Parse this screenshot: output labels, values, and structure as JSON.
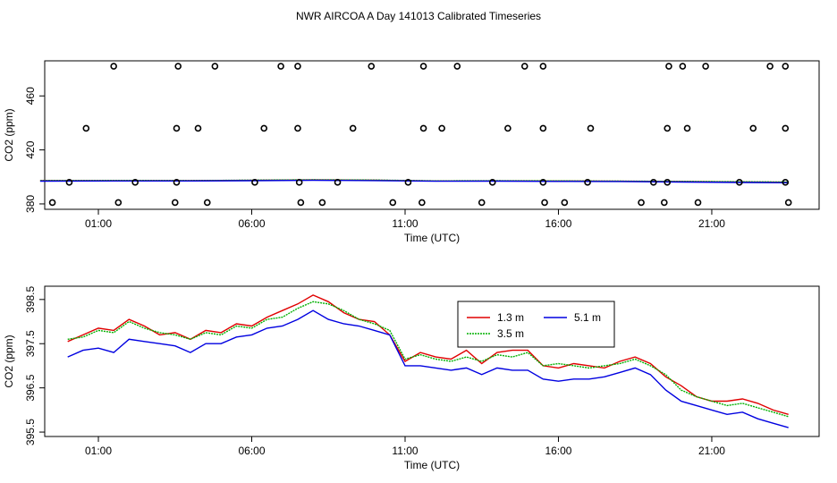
{
  "title": "NWR AIRCOA A  Day 141013  Calibrated Timeseries",
  "colors": {
    "series_1": "#e00000",
    "series_2": "#00b000",
    "series_3": "#0000e0",
    "marker": "#000000",
    "axis": "#000000"
  },
  "chart_data": [
    {
      "type": "scatter",
      "title": "NWR AIRCOA A  Day 141013  Calibrated Timeseries",
      "xlabel": "Time (UTC)",
      "ylabel": "CO2 (ppm)",
      "xlim": [
        -0.75,
        24.5
      ],
      "ylim": [
        376,
        486
      ],
      "xticks": [
        1,
        6,
        11,
        16,
        21
      ],
      "xtick_labels": [
        "01:00",
        "06:00",
        "11:00",
        "16:00",
        "21:00"
      ],
      "yticks": [
        380,
        420,
        460
      ],
      "ytick_labels": [
        "380",
        "420",
        "460"
      ],
      "legend": "none",
      "markers": [
        {
          "x": 1.5,
          "y": 482
        },
        {
          "x": 3.6,
          "y": 482
        },
        {
          "x": 4.8,
          "y": 482
        },
        {
          "x": 6.95,
          "y": 482
        },
        {
          "x": 7.5,
          "y": 482
        },
        {
          "x": 9.9,
          "y": 482
        },
        {
          "x": 11.6,
          "y": 482
        },
        {
          "x": 12.7,
          "y": 482
        },
        {
          "x": 14.9,
          "y": 482
        },
        {
          "x": 15.5,
          "y": 482
        },
        {
          "x": 20.05,
          "y": 482
        },
        {
          "x": 19.6,
          "y": 482
        },
        {
          "x": 20.8,
          "y": 482
        },
        {
          "x": 22.9,
          "y": 482
        },
        {
          "x": 23.4,
          "y": 482
        },
        {
          "x": 0.6,
          "y": 436
        },
        {
          "x": 3.55,
          "y": 436
        },
        {
          "x": 4.25,
          "y": 436
        },
        {
          "x": 6.4,
          "y": 436
        },
        {
          "x": 7.5,
          "y": 436
        },
        {
          "x": 9.3,
          "y": 436
        },
        {
          "x": 11.6,
          "y": 436
        },
        {
          "x": 12.2,
          "y": 436
        },
        {
          "x": 14.35,
          "y": 436
        },
        {
          "x": 15.5,
          "y": 436
        },
        {
          "x": 17.05,
          "y": 436
        },
        {
          "x": 19.55,
          "y": 436
        },
        {
          "x": 20.2,
          "y": 436
        },
        {
          "x": 22.35,
          "y": 436
        },
        {
          "x": 23.4,
          "y": 436
        },
        {
          "x": 0.05,
          "y": 396
        },
        {
          "x": 2.2,
          "y": 396
        },
        {
          "x": 3.55,
          "y": 396
        },
        {
          "x": 6.1,
          "y": 396
        },
        {
          "x": 7.55,
          "y": 396
        },
        {
          "x": 8.8,
          "y": 396
        },
        {
          "x": 11.1,
          "y": 396
        },
        {
          "x": 13.85,
          "y": 396
        },
        {
          "x": 15.5,
          "y": 396
        },
        {
          "x": 16.95,
          "y": 396
        },
        {
          "x": 19.1,
          "y": 396
        },
        {
          "x": 19.55,
          "y": 396
        },
        {
          "x": 21.9,
          "y": 396
        },
        {
          "x": 23.4,
          "y": 396
        },
        {
          "x": -0.5,
          "y": 381
        },
        {
          "x": 1.65,
          "y": 381
        },
        {
          "x": 3.5,
          "y": 381
        },
        {
          "x": 4.55,
          "y": 381
        },
        {
          "x": 7.6,
          "y": 381
        },
        {
          "x": 8.3,
          "y": 381
        },
        {
          "x": 10.6,
          "y": 381
        },
        {
          "x": 11.55,
          "y": 381
        },
        {
          "x": 13.5,
          "y": 381
        },
        {
          "x": 15.55,
          "y": 381
        },
        {
          "x": 16.2,
          "y": 381
        },
        {
          "x": 18.7,
          "y": 381
        },
        {
          "x": 19.45,
          "y": 381
        },
        {
          "x": 20.55,
          "y": 381
        },
        {
          "x": 23.5,
          "y": 381
        }
      ],
      "series": [
        {
          "x": [
            -0.9,
            2,
            4,
            6,
            8,
            10,
            12,
            14,
            16,
            18,
            20,
            22,
            23.5
          ],
          "values": [
            397.2,
            397.3,
            397.2,
            397.5,
            397.8,
            397.6,
            397.0,
            397.1,
            397.0,
            396.8,
            396.6,
            396.3,
            396.1
          ]
        },
        {
          "x": [
            -0.9,
            2,
            4,
            6,
            8,
            10,
            12,
            14,
            16,
            18,
            20,
            22,
            23.5
          ],
          "values": [
            397.3,
            397.4,
            397.3,
            397.6,
            397.9,
            397.7,
            397.1,
            397.2,
            397.1,
            396.9,
            396.7,
            396.4,
            396.2
          ]
        },
        {
          "x": [
            -0.9,
            2,
            4,
            6,
            8,
            10,
            12,
            14,
            16,
            18,
            20,
            22,
            23.5
          ],
          "values": [
            396.9,
            397.0,
            397.0,
            397.2,
            397.5,
            397.3,
            396.8,
            396.9,
            396.7,
            396.6,
            396.2,
            395.9,
            395.7
          ]
        }
      ]
    },
    {
      "type": "line",
      "xlabel": "Time (UTC)",
      "ylabel": "CO2 (ppm)",
      "xlim": [
        -0.75,
        24.5
      ],
      "ylim": [
        395.4,
        398.8
      ],
      "xticks": [
        1,
        6,
        11,
        16,
        21
      ],
      "xtick_labels": [
        "01:00",
        "06:00",
        "11:00",
        "16:00",
        "21:00"
      ],
      "yticks": [
        395.5,
        396.5,
        397.5,
        398.5
      ],
      "ytick_labels": [
        "395.5",
        "396.5",
        "397.5",
        "398.5"
      ],
      "legend": "top-center",
      "x": [
        0,
        0.5,
        1,
        1.5,
        2,
        2.5,
        3,
        3.5,
        4,
        4.5,
        5,
        5.5,
        6,
        6.5,
        7,
        7.5,
        8,
        8.5,
        9,
        9.5,
        10,
        10.5,
        11,
        11.5,
        12,
        12.5,
        13,
        13.5,
        14,
        14.5,
        15,
        15.5,
        16,
        16.5,
        17,
        17.5,
        18,
        18.5,
        19,
        19.5,
        20,
        20.5,
        21,
        21.5,
        22,
        22.5,
        23,
        23.5
      ],
      "series": [
        {
          "name": "1.3 m",
          "values": [
            397.55,
            397.7,
            397.85,
            397.8,
            398.05,
            397.9,
            397.7,
            397.75,
            397.6,
            397.8,
            397.75,
            397.95,
            397.9,
            398.1,
            398.25,
            398.4,
            398.6,
            398.45,
            398.2,
            398.05,
            398.0,
            397.7,
            397.1,
            397.3,
            397.2,
            397.15,
            397.35,
            397.05,
            397.3,
            397.35,
            397.35,
            397.0,
            396.95,
            397.05,
            397.0,
            396.95,
            397.1,
            397.2,
            397.05,
            396.75,
            396.55,
            396.3,
            396.2,
            396.2,
            396.25,
            396.15,
            396.0,
            395.9
          ]
        },
        {
          "name": "3.5 m",
          "values": [
            397.6,
            397.65,
            397.8,
            397.75,
            398.0,
            397.85,
            397.75,
            397.7,
            397.6,
            397.75,
            397.7,
            397.9,
            397.85,
            398.05,
            398.1,
            398.3,
            398.45,
            398.4,
            398.25,
            398.05,
            397.95,
            397.8,
            397.15,
            397.25,
            397.15,
            397.1,
            397.2,
            397.1,
            397.25,
            397.2,
            397.3,
            397.0,
            397.05,
            397.0,
            396.95,
            397.0,
            397.05,
            397.15,
            397.0,
            396.8,
            396.45,
            396.3,
            396.2,
            396.1,
            396.15,
            396.05,
            395.95,
            395.85
          ]
        },
        {
          "name": "5.1 m",
          "values": [
            397.2,
            397.35,
            397.4,
            397.3,
            397.6,
            397.55,
            397.5,
            397.45,
            397.3,
            397.5,
            397.5,
            397.65,
            397.7,
            397.85,
            397.9,
            398.05,
            398.25,
            398.05,
            397.95,
            397.9,
            397.8,
            397.7,
            397.0,
            397.0,
            396.95,
            396.9,
            396.95,
            396.8,
            396.95,
            396.9,
            396.9,
            396.7,
            396.65,
            396.7,
            396.7,
            396.75,
            396.85,
            396.95,
            396.8,
            396.45,
            396.2,
            396.1,
            396.0,
            395.9,
            395.95,
            395.8,
            395.7,
            395.6
          ]
        }
      ]
    }
  ]
}
